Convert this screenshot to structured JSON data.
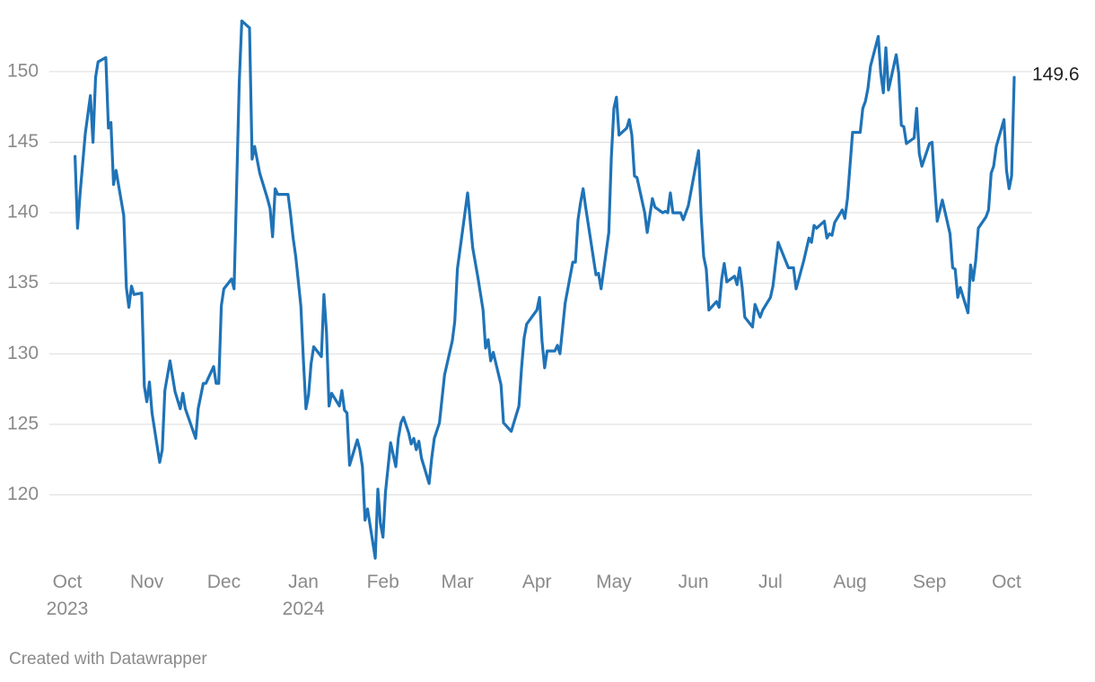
{
  "chart_data": {
    "type": "line",
    "color": "#1f73b7",
    "credit": "Created with Datawrapper",
    "x": [
      3,
      4,
      5,
      7,
      9,
      10,
      11,
      12,
      15,
      16,
      17,
      18,
      19,
      22,
      23,
      24,
      25,
      26,
      29,
      30,
      31,
      32,
      33,
      36,
      37,
      38,
      40,
      42,
      44,
      45,
      46,
      50,
      51,
      53,
      54,
      57,
      58,
      59,
      60,
      61,
      64,
      65,
      67,
      68,
      71,
      72,
      73,
      75,
      78,
      79,
      80,
      81,
      82,
      86,
      87,
      88,
      89,
      91,
      92,
      93,
      94,
      95,
      96,
      99,
      100,
      101,
      102,
      103,
      106,
      107,
      108,
      109,
      110,
      113,
      114,
      115,
      116,
      117,
      120,
      121,
      122,
      123,
      124,
      126,
      128,
      129,
      130,
      131,
      133,
      134,
      135,
      136,
      137,
      138,
      141,
      142,
      143,
      145,
      147,
      149,
      150,
      151,
      152,
      156,
      158,
      160,
      162,
      163,
      164,
      165,
      166,
      169,
      170,
      173,
      176,
      177,
      178,
      179,
      183,
      184,
      185,
      186,
      187,
      190,
      191,
      192,
      193,
      194,
      197,
      198,
      199,
      200,
      201,
      202,
      206,
      207,
      208,
      211,
      212,
      213,
      214,
      215,
      218,
      219,
      220,
      221,
      222,
      225,
      226,
      228,
      229,
      232,
      233,
      234,
      235,
      236,
      239,
      240,
      242,
      246,
      247,
      248,
      249,
      250,
      253,
      254,
      255,
      256,
      257,
      260,
      261,
      262,
      263,
      264,
      267,
      268,
      270,
      271,
      274,
      275,
      277,
      281,
      283,
      284,
      287,
      289,
      290,
      291,
      292,
      295,
      296,
      297,
      298,
      299,
      301,
      302,
      303,
      304,
      305,
      306,
      309,
      310,
      311,
      312,
      313,
      316,
      317,
      318,
      319,
      320,
      323,
      324,
      325,
      326,
      327,
      330,
      331,
      332,
      333,
      336,
      337,
      338,
      339,
      341,
      344,
      345,
      346,
      347,
      348,
      351,
      352,
      353,
      354,
      355,
      358,
      359,
      360,
      361,
      362,
      365,
      366,
      367,
      368,
      369
    ],
    "values": [
      144.0,
      138.9,
      141.4,
      145.6,
      148.3,
      145.0,
      149.6,
      150.7,
      151.0,
      146.0,
      146.4,
      142.0,
      143.0,
      139.8,
      134.7,
      133.3,
      134.8,
      134.2,
      134.3,
      127.7,
      126.6,
      128.0,
      125.8,
      122.3,
      123.2,
      127.4,
      129.5,
      127.3,
      126.1,
      127.2,
      126.1,
      124.0,
      126.1,
      127.9,
      127.9,
      129.1,
      127.9,
      127.9,
      133.4,
      134.6,
      135.3,
      134.6,
      149.3,
      153.6,
      153.1,
      143.8,
      144.7,
      142.8,
      141.0,
      140.3,
      138.3,
      141.7,
      141.3,
      141.3,
      139.9,
      138.2,
      136.9,
      133.4,
      129.6,
      126.1,
      127.1,
      129.3,
      130.5,
      129.8,
      134.2,
      131.5,
      126.3,
      127.2,
      126.3,
      127.4,
      126.0,
      125.8,
      122.1,
      123.9,
      123.2,
      122.0,
      118.2,
      119.0,
      115.5,
      120.4,
      118.0,
      117.0,
      120.2,
      123.7,
      122.0,
      124.0,
      125.1,
      125.5,
      124.4,
      123.6,
      124.0,
      123.2,
      123.8,
      122.6,
      120.8,
      122.6,
      124.0,
      125.1,
      128.5,
      130.1,
      130.9,
      132.3,
      136.0,
      141.4,
      137.5,
      135.4,
      133.1,
      130.4,
      131.0,
      129.5,
      130.1,
      127.8,
      125.1,
      124.5,
      126.3,
      129.0,
      131.1,
      132.1,
      133.1,
      134.0,
      130.9,
      129.0,
      130.2,
      130.2,
      130.6,
      130.0,
      131.8,
      133.6,
      136.5,
      136.5,
      139.5,
      140.7,
      141.7,
      140.4,
      135.6,
      135.7,
      134.6,
      138.6,
      143.9,
      147.4,
      148.2,
      145.5,
      146.0,
      146.6,
      145.5,
      142.6,
      142.5,
      140.0,
      138.6,
      141.0,
      140.4,
      140.0,
      140.1,
      140.0,
      141.4,
      140.0,
      140.0,
      139.5,
      140.5,
      144.4,
      139.8,
      136.9,
      136.0,
      133.1,
      133.7,
      133.3,
      135.3,
      136.4,
      135.1,
      135.5,
      134.9,
      136.1,
      134.7,
      132.6,
      131.9,
      133.5,
      132.6,
      133.1,
      134.0,
      134.8,
      137.9,
      136.1,
      136.1,
      134.6,
      136.6,
      138.2,
      137.9,
      139.1,
      138.9,
      139.4,
      138.2,
      138.5,
      138.4,
      139.3,
      139.9,
      140.2,
      139.6,
      141.0,
      143.3,
      145.7,
      145.7,
      147.4,
      147.9,
      148.8,
      150.4,
      152.5,
      149.9,
      148.5,
      151.7,
      148.7,
      151.2,
      149.9,
      146.2,
      146.1,
      144.9,
      145.3,
      147.4,
      144.2,
      143.3,
      144.9,
      145.0,
      142.0,
      139.4,
      140.9,
      138.5,
      136.1,
      136.0,
      134.0,
      134.7,
      132.9,
      136.3,
      135.2,
      136.6,
      138.9,
      139.7,
      140.2,
      142.8,
      143.3,
      144.7,
      146.6,
      143.0,
      141.7,
      142.6,
      149.6
    ],
    "xlim": [
      -7,
      376
    ],
    "xticks": [
      {
        "value": 0,
        "label": "Oct\n2023"
      },
      {
        "value": 31,
        "label": "Nov"
      },
      {
        "value": 61,
        "label": "Dec"
      },
      {
        "value": 92,
        "label": "Jan\n2024"
      },
      {
        "value": 123,
        "label": "Feb"
      },
      {
        "value": 152,
        "label": "Mar"
      },
      {
        "value": 183,
        "label": "Apr"
      },
      {
        "value": 213,
        "label": "May"
      },
      {
        "value": 244,
        "label": "Jun"
      },
      {
        "value": 274,
        "label": "Jul"
      },
      {
        "value": 305,
        "label": "Aug"
      },
      {
        "value": 336,
        "label": "Sep"
      },
      {
        "value": 366,
        "label": "Oct"
      }
    ],
    "ylim": [
      115,
      154
    ],
    "yticks": [
      120,
      125,
      130,
      135,
      140,
      145,
      150
    ],
    "grid": true
  }
}
